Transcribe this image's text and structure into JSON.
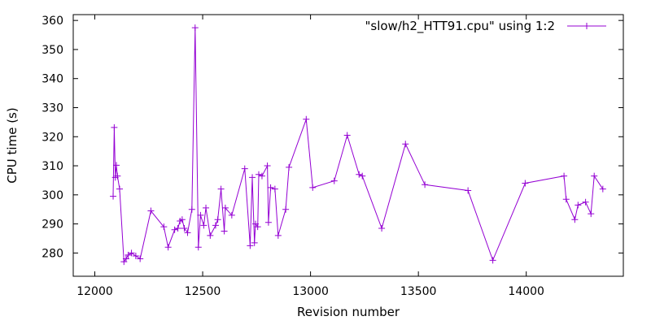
{
  "chart_data": {
    "type": "line",
    "xlabel": "Revision number",
    "ylabel": "CPU time (s)",
    "xlim": [
      11900,
      14450
    ],
    "ylim": [
      272,
      362
    ],
    "xticks": [
      12000,
      12500,
      13000,
      13500,
      14000
    ],
    "yticks": [
      280,
      290,
      300,
      310,
      320,
      330,
      340,
      350,
      360
    ],
    "grid": false,
    "legend_position": "top-right",
    "colors": {
      "series": "#9400d3",
      "axis": "#000000"
    },
    "series": [
      {
        "name": "\"slow/h2_HTT91.cpu\" using 1:2",
        "marker": "plus",
        "points": [
          [
            12085,
            299.5
          ],
          [
            12090,
            323.2
          ],
          [
            12095,
            306.0
          ],
          [
            12100,
            310.2
          ],
          [
            12105,
            306.5
          ],
          [
            12115,
            302.0
          ],
          [
            12135,
            277.0
          ],
          [
            12145,
            278.0
          ],
          [
            12155,
            279.3
          ],
          [
            12170,
            280.0
          ],
          [
            12190,
            279.0
          ],
          [
            12210,
            278.0
          ],
          [
            12260,
            294.5
          ],
          [
            12320,
            289.0
          ],
          [
            12340,
            282.0
          ],
          [
            12370,
            288.0
          ],
          [
            12385,
            288.5
          ],
          [
            12395,
            291.0
          ],
          [
            12405,
            291.5
          ],
          [
            12415,
            288.5
          ],
          [
            12430,
            287.0
          ],
          [
            12450,
            295.0
          ],
          [
            12465,
            357.5
          ],
          [
            12480,
            282.0
          ],
          [
            12490,
            293.0
          ],
          [
            12505,
            289.5
          ],
          [
            12515,
            295.5
          ],
          [
            12535,
            286.0
          ],
          [
            12560,
            289.5
          ],
          [
            12570,
            291.5
          ],
          [
            12585,
            302.0
          ],
          [
            12600,
            287.5
          ],
          [
            12605,
            295.5
          ],
          [
            12635,
            293.0
          ],
          [
            12695,
            309.0
          ],
          [
            12720,
            282.5
          ],
          [
            12730,
            306.0
          ],
          [
            12740,
            283.5
          ],
          [
            12745,
            290.0
          ],
          [
            12755,
            289.0
          ],
          [
            12760,
            307.0
          ],
          [
            12775,
            306.5
          ],
          [
            12800,
            310.0
          ],
          [
            12805,
            290.5
          ],
          [
            12815,
            302.5
          ],
          [
            12835,
            302.0
          ],
          [
            12850,
            286.0
          ],
          [
            12885,
            295.0
          ],
          [
            12900,
            309.5
          ],
          [
            12980,
            326.0
          ],
          [
            13010,
            302.5
          ],
          [
            13110,
            304.8
          ],
          [
            13170,
            320.5
          ],
          [
            13225,
            307.0
          ],
          [
            13240,
            306.5
          ],
          [
            13330,
            288.5
          ],
          [
            13440,
            317.5
          ],
          [
            13530,
            303.5
          ],
          [
            13730,
            301.5
          ],
          [
            13845,
            277.5
          ],
          [
            13995,
            304.0
          ],
          [
            14175,
            306.5
          ],
          [
            14185,
            298.5
          ],
          [
            14225,
            291.5
          ],
          [
            14240,
            296.5
          ],
          [
            14275,
            297.5
          ],
          [
            14300,
            293.5
          ],
          [
            14315,
            306.5
          ],
          [
            14355,
            302.0
          ]
        ]
      }
    ]
  }
}
